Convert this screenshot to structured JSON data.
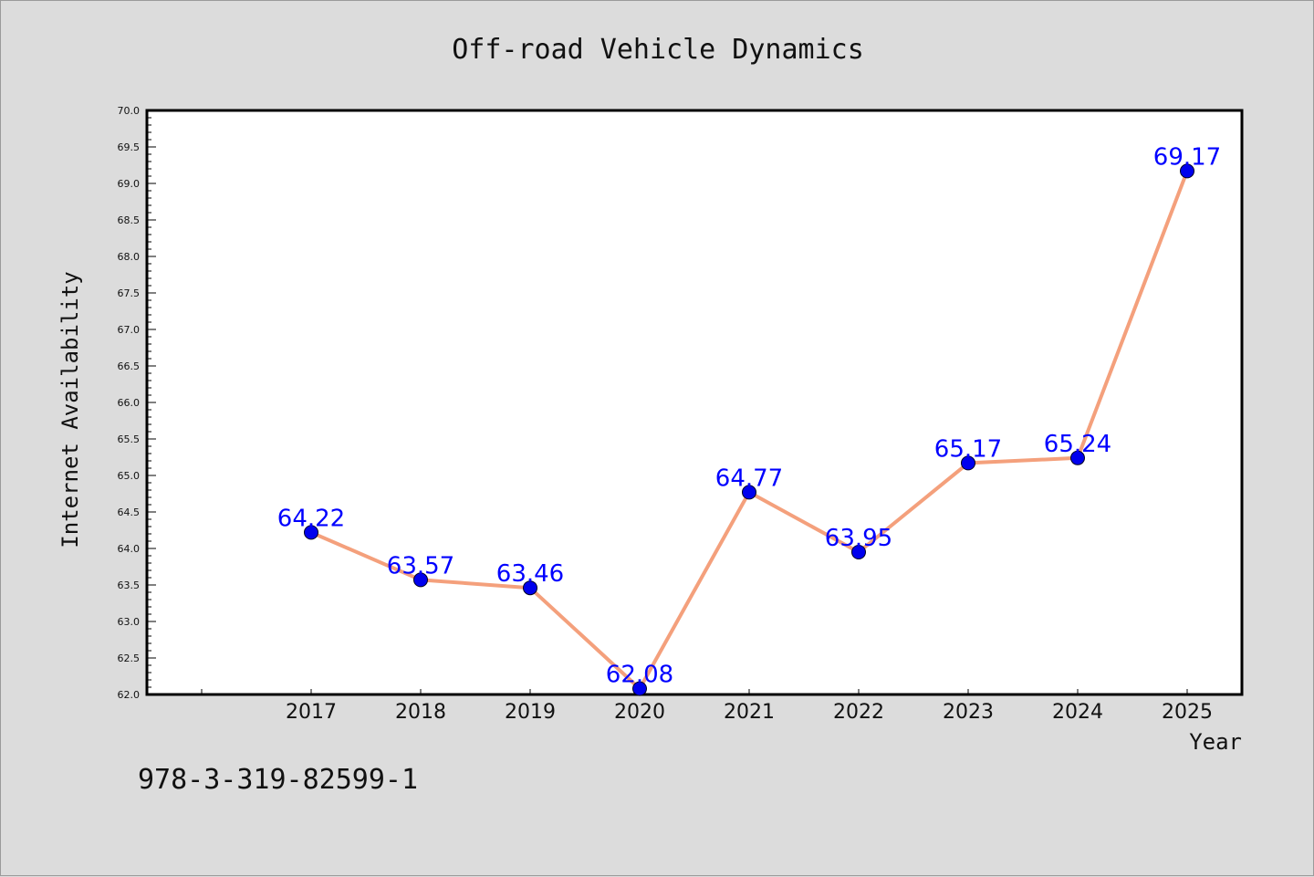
{
  "isbn": "978-3-319-82599-1",
  "colors": {
    "background": "#dcdcdc",
    "plot_background": "#ffffff",
    "line": "#f4a07c",
    "marker": "#0000ee",
    "data_label": "#0000ff"
  },
  "chart_data": {
    "type": "line",
    "title": "Off-road Vehicle Dynamics",
    "xlabel": "Year",
    "ylabel": "Internet Availability",
    "x": [
      2017,
      2018,
      2019,
      2020,
      2021,
      2022,
      2023,
      2024,
      2025
    ],
    "x_tick_labels": [
      "2017",
      "2018",
      "2019",
      "2020",
      "2021",
      "2022",
      "2023",
      "2024",
      "2025"
    ],
    "series": [
      {
        "values": [
          64.22,
          63.57,
          63.46,
          62.08,
          64.77,
          63.95,
          65.17,
          65.24,
          69.17
        ],
        "labels": [
          "64.22",
          "63.57",
          "63.46",
          "62.08",
          "64.77",
          "63.95",
          "65.17",
          "65.24",
          "69.17"
        ]
      }
    ],
    "xlim": [
      2015.5,
      2025.5
    ],
    "ylim": [
      62.0,
      70.0
    ],
    "y_ticks": [
      "62.0",
      "62.5",
      "63.0",
      "63.5",
      "64.0",
      "64.5",
      "65.0",
      "65.5",
      "66.0",
      "66.5",
      "67.0",
      "67.5",
      "68.0",
      "68.5",
      "69.0",
      "69.5",
      "70.0"
    ],
    "grid": false,
    "legend": "none"
  }
}
